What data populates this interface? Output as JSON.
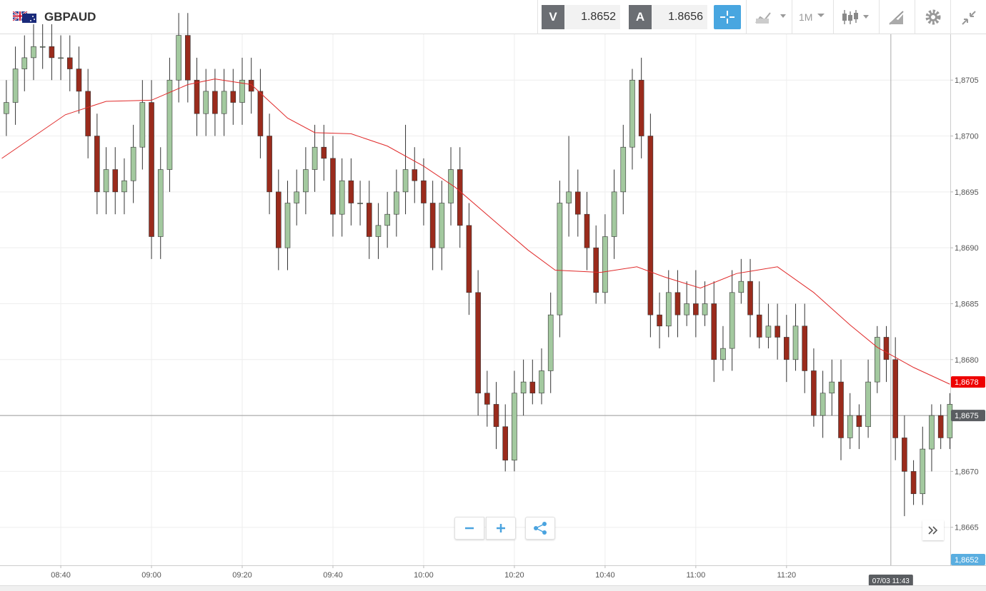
{
  "header": {
    "symbol": "GBPAUD",
    "sell_label": "V",
    "sell_price": "1.8652",
    "buy_label": "A",
    "buy_price": "1.8656",
    "timeframe": "1M"
  },
  "chart_data": {
    "type": "candlestick",
    "x": [
      508,
      510,
      512,
      514,
      516,
      518,
      520,
      522,
      524,
      526,
      528,
      530,
      532,
      534,
      536,
      538,
      540,
      542,
      544,
      546,
      548,
      550,
      552,
      554,
      556,
      558,
      560,
      562,
      564,
      566,
      568,
      570,
      572,
      574,
      576,
      578,
      580,
      582,
      584,
      586,
      588,
      590,
      592,
      594,
      596,
      598,
      600,
      602,
      604,
      606,
      608,
      610,
      612,
      614,
      616,
      618,
      620,
      622,
      624,
      626,
      628,
      630,
      632,
      634,
      636,
      638,
      640,
      642,
      644,
      646,
      648,
      650,
      652,
      654,
      656,
      658,
      660,
      662,
      664,
      666,
      668,
      670,
      672,
      674,
      676,
      678,
      680,
      682,
      684,
      686,
      688,
      690,
      692,
      694,
      696,
      698,
      700,
      702,
      704,
      706,
      708,
      710,
      712,
      714,
      716
    ],
    "open": [
      1.8702,
      1.8703,
      1.8706,
      1.8707,
      1.8708,
      1.8708,
      1.8707,
      1.8707,
      1.8706,
      1.8704,
      1.87,
      1.8695,
      1.8697,
      1.8695,
      1.8696,
      1.8699,
      1.8703,
      1.8691,
      1.8697,
      1.8705,
      1.8709,
      1.8705,
      1.8702,
      1.8704,
      1.8702,
      1.8704,
      1.8703,
      1.8705,
      1.8704,
      1.87,
      1.8695,
      1.869,
      1.8694,
      1.8695,
      1.8697,
      1.8699,
      1.8698,
      1.8693,
      1.8696,
      1.8694,
      1.8694,
      1.8691,
      1.8692,
      1.8693,
      1.8695,
      1.8697,
      1.8696,
      1.8694,
      1.869,
      1.8694,
      1.8697,
      1.8692,
      1.8686,
      1.8677,
      1.8676,
      1.8674,
      1.8671,
      1.8677,
      1.8678,
      1.8677,
      1.8679,
      1.8684,
      1.8694,
      1.8695,
      1.8693,
      1.869,
      1.8686,
      1.8691,
      1.8695,
      1.8699,
      1.8705,
      1.87,
      1.8684,
      1.8683,
      1.8686,
      1.8684,
      1.8685,
      1.8684,
      1.8685,
      1.868,
      1.8681,
      1.8686,
      1.8687,
      1.8684,
      1.8682,
      1.8683,
      1.8682,
      1.868,
      1.8683,
      1.8679,
      1.8675,
      1.8677,
      1.8678,
      1.8673,
      1.8675,
      1.8674,
      1.8678,
      1.8682,
      1.868,
      1.8673,
      1.867,
      1.8668,
      1.8672,
      1.8675,
      1.8673
    ],
    "high": [
      1.8705,
      1.8708,
      1.8709,
      1.871,
      1.871,
      1.871,
      1.8709,
      1.8709,
      1.8708,
      1.8706,
      1.8702,
      1.8699,
      1.8699,
      1.8698,
      1.8701,
      1.8705,
      1.8705,
      1.8699,
      1.8707,
      1.8711,
      1.8711,
      1.8707,
      1.8706,
      1.8706,
      1.8706,
      1.8706,
      1.8707,
      1.8707,
      1.8706,
      1.8702,
      1.8697,
      1.8696,
      1.8697,
      1.8699,
      1.8701,
      1.8701,
      1.87,
      1.8698,
      1.8698,
      1.8696,
      1.8696,
      1.8694,
      1.8695,
      1.8697,
      1.8701,
      1.8699,
      1.8698,
      1.8696,
      1.8696,
      1.8699,
      1.8699,
      1.8694,
      1.8688,
      1.8679,
      1.8678,
      1.8676,
      1.8679,
      1.868,
      1.868,
      1.8681,
      1.8686,
      1.8696,
      1.87,
      1.8697,
      1.8695,
      1.8692,
      1.8693,
      1.8697,
      1.8701,
      1.8706,
      1.8707,
      1.8702,
      1.8686,
      1.8688,
      1.8688,
      1.8687,
      1.8688,
      1.8687,
      1.8687,
      1.8683,
      1.8688,
      1.8689,
      1.8689,
      1.8687,
      1.8685,
      1.8685,
      1.8684,
      1.8685,
      1.8685,
      1.8681,
      1.8679,
      1.868,
      1.868,
      1.8677,
      1.8676,
      1.868,
      1.8683,
      1.8683,
      1.8682,
      1.8675,
      1.8671,
      1.8674,
      1.8676,
      1.8676,
      1.8677
    ],
    "low": [
      1.87,
      1.8701,
      1.8704,
      1.8705,
      1.8706,
      1.8705,
      1.8705,
      1.8704,
      1.8702,
      1.8698,
      1.8693,
      1.8693,
      1.8693,
      1.8693,
      1.8694,
      1.8697,
      1.8689,
      1.8689,
      1.8695,
      1.8703,
      1.8703,
      1.87,
      1.87,
      1.87,
      1.87,
      1.8701,
      1.8701,
      1.8702,
      1.8698,
      1.8693,
      1.8688,
      1.8688,
      1.8692,
      1.8693,
      1.8695,
      1.8696,
      1.8691,
      1.8691,
      1.8692,
      1.8692,
      1.8689,
      1.8689,
      1.869,
      1.8691,
      1.8693,
      1.8694,
      1.8692,
      1.8688,
      1.8688,
      1.8692,
      1.869,
      1.8684,
      1.8675,
      1.8674,
      1.8672,
      1.867,
      1.867,
      1.8675,
      1.8676,
      1.8676,
      1.8677,
      1.8682,
      1.8691,
      1.8691,
      1.8688,
      1.8685,
      1.8685,
      1.8689,
      1.8693,
      1.8697,
      1.8698,
      1.8682,
      1.8681,
      1.8682,
      1.8682,
      1.8683,
      1.8682,
      1.8683,
      1.8678,
      1.8679,
      1.8679,
      1.8685,
      1.8682,
      1.8681,
      1.8681,
      1.868,
      1.8678,
      1.8679,
      1.8677,
      1.8674,
      1.8673,
      1.8675,
      1.8671,
      1.8672,
      1.8672,
      1.8673,
      1.8677,
      1.8678,
      1.8671,
      1.8666,
      1.8667,
      1.8667,
      1.867,
      1.8672,
      1.8672
    ],
    "close": [
      1.8703,
      1.8706,
      1.8707,
      1.8708,
      1.8708,
      1.8707,
      1.8707,
      1.8706,
      1.8704,
      1.87,
      1.8695,
      1.8697,
      1.8695,
      1.8696,
      1.8699,
      1.8703,
      1.8691,
      1.8697,
      1.8705,
      1.8709,
      1.8705,
      1.8702,
      1.8704,
      1.8702,
      1.8704,
      1.8703,
      1.8705,
      1.8704,
      1.87,
      1.8695,
      1.869,
      1.8694,
      1.8695,
      1.8697,
      1.8699,
      1.8698,
      1.8693,
      1.8696,
      1.8694,
      1.8694,
      1.8691,
      1.8692,
      1.8693,
      1.8695,
      1.8697,
      1.8696,
      1.8694,
      1.869,
      1.8694,
      1.8697,
      1.8692,
      1.8686,
      1.8677,
      1.8676,
      1.8674,
      1.8671,
      1.8677,
      1.8678,
      1.8677,
      1.8679,
      1.8684,
      1.8694,
      1.8695,
      1.8693,
      1.869,
      1.8686,
      1.8691,
      1.8695,
      1.8699,
      1.8705,
      1.87,
      1.8684,
      1.8683,
      1.8686,
      1.8684,
      1.8685,
      1.8684,
      1.8685,
      1.868,
      1.8681,
      1.8686,
      1.8687,
      1.8684,
      1.8682,
      1.8683,
      1.8682,
      1.868,
      1.8683,
      1.8679,
      1.8675,
      1.8677,
      1.8678,
      1.8673,
      1.8675,
      1.8674,
      1.8678,
      1.8682,
      1.868,
      1.8673,
      1.867,
      1.8668,
      1.8672,
      1.8675,
      1.8673,
      1.8676
    ],
    "up_color": "#a3c99f",
    "down_color": "#9a2b1c",
    "moving_average": {
      "color": "#e02a2a",
      "x": [
        507,
        521,
        530,
        540,
        548,
        554,
        562,
        570,
        576,
        584,
        592,
        600,
        607,
        617,
        623,
        629,
        639,
        647,
        653,
        661,
        669,
        678,
        686,
        694,
        700,
        708,
        716
      ],
      "values": [
        1.8698,
        1.87019,
        1.87031,
        1.87032,
        1.87046,
        1.87051,
        1.87046,
        1.87016,
        1.87003,
        1.87002,
        1.86991,
        1.86973,
        1.86954,
        1.86919,
        1.86898,
        1.8688,
        1.86878,
        1.86883,
        1.86874,
        1.86864,
        1.86877,
        1.86883,
        1.8686,
        1.86831,
        1.86811,
        1.86793,
        1.86778
      ]
    },
    "xlim": [
      506.6,
      716.1
    ],
    "ylim": [
      1.86616,
      1.87091
    ],
    "xticks": [
      {
        "value": 520,
        "label": "08:40"
      },
      {
        "value": 540,
        "label": "09:00"
      },
      {
        "value": 560,
        "label": "09:20"
      },
      {
        "value": 580,
        "label": "09:40"
      },
      {
        "value": 600,
        "label": "10:00"
      },
      {
        "value": 620,
        "label": "10:20"
      },
      {
        "value": 640,
        "label": "10:40"
      },
      {
        "value": 660,
        "label": "11:00"
      },
      {
        "value": 680,
        "label": "11:20"
      }
    ],
    "yticks": [
      {
        "value": 1.8665,
        "label": "1,8665"
      },
      {
        "value": 1.867,
        "label": "1,8670"
      },
      {
        "value": 1.8675,
        "label": "1,8675"
      },
      {
        "value": 1.868,
        "label": "1,8680"
      },
      {
        "value": 1.8685,
        "label": "1,8685"
      },
      {
        "value": 1.869,
        "label": "1,8690"
      },
      {
        "value": 1.8695,
        "label": "1,8695"
      },
      {
        "value": 1.87,
        "label": "1,8700"
      },
      {
        "value": 1.8705,
        "label": "1,8705"
      }
    ],
    "grid": true,
    "price_markers": [
      {
        "value": 1.8678,
        "label": "1,8678",
        "color": "#ee0000"
      },
      {
        "value": 1.8675,
        "label": "1,8675",
        "color": "#5a5d61"
      }
    ],
    "price_line": 1.8675,
    "bid_label": "1,8652",
    "crosshair": {
      "x": 703,
      "label": "07/03 11:43"
    }
  }
}
